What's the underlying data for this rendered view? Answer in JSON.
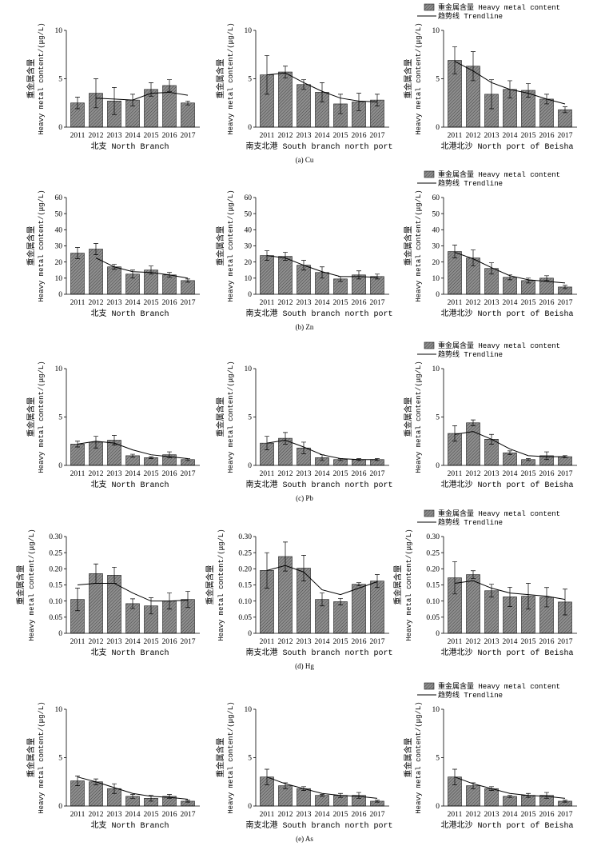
{
  "colors": {
    "bar_fill": "#8e8e8e",
    "bar_hatch": "#3f3f3f",
    "line": "#000000"
  },
  "captions": [
    "(a) Cu",
    "(b) Zn",
    "(c) Pb",
    "(d) Hg",
    "(e) As"
  ],
  "chart_data": [
    {
      "type": "bar",
      "categories": [
        "2011",
        "2012",
        "2013",
        "2014",
        "2015",
        "2016",
        "2017"
      ],
      "values": [
        2.5,
        3.5,
        2.7,
        2.8,
        3.9,
        4.3,
        2.5
      ],
      "error": [
        0.6,
        1.5,
        1.4,
        0.6,
        0.7,
        0.6,
        0.2
      ],
      "trend": [
        null,
        3.0,
        2.9,
        2.8,
        3.5,
        3.6,
        3.3
      ],
      "xlabel": "北支 North Branch",
      "ylabel": [
        "重金属含量",
        "Heavy metal content/(μg/L)"
      ],
      "ylim": [
        0,
        10
      ],
      "yticks": [
        "0",
        "5",
        "10"
      ]
    },
    {
      "type": "bar",
      "categories": [
        "2011",
        "2012",
        "2013",
        "2014",
        "2015",
        "2016",
        "2017"
      ],
      "values": [
        5.4,
        5.7,
        4.4,
        3.6,
        2.4,
        2.6,
        2.8
      ],
      "error": [
        2.0,
        0.6,
        0.5,
        1.0,
        1.0,
        0.9,
        0.6
      ],
      "trend": [
        5.4,
        5.6,
        4.6,
        3.7,
        3.0,
        2.7,
        2.6
      ],
      "xlabel": "南支北港 South branch north port",
      "ylabel": [
        "重金属含量",
        "Heavy metal content/(μg/L)"
      ],
      "ylim": [
        0,
        10
      ],
      "yticks": [
        "0",
        "5",
        "10"
      ]
    },
    {
      "type": "bar",
      "categories": [
        "2011",
        "2012",
        "2013",
        "2014",
        "2015",
        "2016",
        "2017"
      ],
      "values": [
        6.9,
        6.3,
        3.4,
        3.9,
        3.8,
        2.9,
        1.8
      ],
      "error": [
        1.4,
        1.5,
        1.5,
        0.9,
        0.7,
        0.5,
        0.3
      ],
      "trend": [
        6.8,
        5.8,
        4.6,
        3.9,
        3.5,
        2.9,
        2.4
      ],
      "xlabel": "北港北沙 North port of Beisha",
      "ylabel": [
        "重金属含量",
        "Heavy metal content/(μg/L)"
      ],
      "ylim": [
        0,
        10
      ],
      "yticks": [
        "0",
        "5",
        "10"
      ],
      "legend": [
        "重金属含量 Heavy metal content",
        "趋势线 Trendline"
      ]
    },
    {
      "type": "bar",
      "categories": [
        "2011",
        "2012",
        "2013",
        "2014",
        "2015",
        "2016",
        "2017"
      ],
      "values": [
        25.5,
        28,
        17,
        12.5,
        15,
        12,
        8.5
      ],
      "error": [
        3.5,
        3.5,
        1.5,
        2.5,
        2.5,
        1.5,
        1
      ],
      "trend": [
        null,
        22.5,
        17,
        14,
        13.5,
        12,
        10
      ],
      "xlabel": "北支 North Branch",
      "ylabel": [
        "重金属含量",
        "Heavy metal content/(μg/L)"
      ],
      "ylim": [
        0,
        60
      ],
      "yticks": [
        "0",
        "10",
        "20",
        "30",
        "40",
        "50",
        "60"
      ]
    },
    {
      "type": "bar",
      "categories": [
        "2011",
        "2012",
        "2013",
        "2014",
        "2015",
        "2016",
        "2017"
      ],
      "values": [
        24,
        23.5,
        18,
        13.5,
        9.5,
        12,
        11
      ],
      "error": [
        3,
        2.5,
        3,
        3.5,
        1.5,
        2.5,
        1.5
      ],
      "trend": [
        24,
        22.5,
        18,
        14,
        11,
        11,
        10.5
      ],
      "xlabel": "南支北港 South branch north port",
      "ylabel": [
        "重金属含量",
        "Heavy metal content/(μg/L)"
      ],
      "ylim": [
        0,
        60
      ],
      "yticks": [
        "0",
        "10",
        "20",
        "30",
        "40",
        "50",
        "60"
      ]
    },
    {
      "type": "bar",
      "categories": [
        "2011",
        "2012",
        "2013",
        "2014",
        "2015",
        "2016",
        "2017"
      ],
      "values": [
        26.5,
        22.5,
        16,
        10.5,
        8.5,
        10,
        4.5
      ],
      "error": [
        4,
        5,
        3.5,
        1.5,
        1.5,
        1.5,
        1
      ],
      "trend": [
        26,
        22,
        16.5,
        11.5,
        9,
        8,
        7
      ],
      "xlabel": "北港北沙 North port of Beisha",
      "ylabel": [
        "重金属含量",
        "Heavy metal content/(μg/L)"
      ],
      "ylim": [
        0,
        60
      ],
      "yticks": [
        "0",
        "10",
        "20",
        "30",
        "40",
        "50",
        "60"
      ],
      "legend": [
        "重金属含量 Heavy metal content",
        "趋势线 Trendline"
      ]
    },
    {
      "type": "bar",
      "categories": [
        "2011",
        "2012",
        "2013",
        "2014",
        "2015",
        "2016",
        "2017"
      ],
      "values": [
        2.2,
        2.4,
        2.6,
        1.0,
        0.8,
        1.1,
        0.6
      ],
      "error": [
        0.3,
        0.6,
        0.5,
        0.15,
        0.1,
        0.3,
        0.1
      ],
      "trend": [
        2.2,
        2.5,
        2.3,
        1.6,
        1.1,
        0.9,
        0.7
      ],
      "xlabel": "北支 North Branch",
      "ylabel": [
        "重金属含量",
        "Heavy metal content/(μg/L)"
      ],
      "ylim": [
        0,
        10
      ],
      "yticks": [
        "0",
        "5",
        "10"
      ]
    },
    {
      "type": "bar",
      "categories": [
        "2011",
        "2012",
        "2013",
        "2014",
        "2015",
        "2016",
        "2017"
      ],
      "values": [
        2.3,
        2.8,
        1.8,
        0.8,
        0.6,
        0.6,
        0.6
      ],
      "error": [
        0.7,
        0.6,
        0.6,
        0.3,
        0.1,
        0.1,
        0.1
      ],
      "trend": [
        2.3,
        2.6,
        1.9,
        1.1,
        0.7,
        0.6,
        0.6
      ],
      "xlabel": "南支北港 South branch north port",
      "ylabel": [
        "重金属含量",
        "Heavy metal content/(μg/L)"
      ],
      "ylim": [
        0,
        10
      ],
      "yticks": [
        "0",
        "5",
        "10"
      ]
    },
    {
      "type": "bar",
      "categories": [
        "2011",
        "2012",
        "2013",
        "2014",
        "2015",
        "2016",
        "2017"
      ],
      "values": [
        3.3,
        4.4,
        2.7,
        1.3,
        0.6,
        1.0,
        0.9
      ],
      "error": [
        0.8,
        0.3,
        0.5,
        0.2,
        0.1,
        0.4,
        0.1
      ],
      "trend": [
        3.2,
        3.5,
        2.7,
        1.7,
        1.0,
        0.9,
        0.9
      ],
      "xlabel": "北港北沙 North port of Beisha",
      "ylabel": [
        "重金属含量",
        "Heavy metal content/(μg/L)"
      ],
      "ylim": [
        0,
        10
      ],
      "yticks": [
        "0",
        "5",
        "10"
      ],
      "legend": [
        "重金属含量 Heavy metal content",
        "趋势线 Trendline"
      ]
    },
    {
      "type": "bar",
      "categories": [
        "2011",
        "2012",
        "2013",
        "2014",
        "2015",
        "2016",
        "2017"
      ],
      "values": [
        0.105,
        0.185,
        0.18,
        0.092,
        0.085,
        0.1,
        0.105
      ],
      "error": [
        0.035,
        0.03,
        0.025,
        0.015,
        0.025,
        0.025,
        0.025
      ],
      "trend": [
        0.15,
        0.155,
        0.155,
        0.125,
        0.1,
        0.1,
        0.103
      ],
      "xlabel": "北支 North Branch",
      "ylabel": [
        "重金属含量",
        "Heavy metal content/(μg/L)"
      ],
      "ylim": [
        0,
        0.3
      ],
      "yticks": [
        "0",
        "0.05",
        "0.10",
        "0.15",
        "0.20",
        "0.25",
        "0.30"
      ]
    },
    {
      "type": "bar",
      "categories": [
        "2011",
        "2012",
        "2013",
        "2014",
        "2015",
        "2016",
        "2017"
      ],
      "values": [
        0.195,
        0.238,
        0.202,
        0.105,
        0.098,
        0.152,
        0.162
      ],
      "error": [
        0.055,
        0.045,
        0.04,
        0.02,
        0.01,
        0.005,
        0.02
      ],
      "trend": [
        0.195,
        0.21,
        0.19,
        0.135,
        0.12,
        0.14,
        0.16
      ],
      "xlabel": "南支北港 South branch north port",
      "ylabel": [
        "重金属含量",
        "Heavy metal content/(μg/L)"
      ],
      "ylim": [
        0,
        0.3
      ],
      "yticks": [
        "0",
        "0.05",
        "0.10",
        "0.15",
        "0.20",
        "0.25",
        "0.30"
      ]
    },
    {
      "type": "bar",
      "categories": [
        "2011",
        "2012",
        "2013",
        "2014",
        "2015",
        "2016",
        "2017"
      ],
      "values": [
        0.172,
        0.182,
        0.132,
        0.113,
        0.115,
        0.112,
        0.097
      ],
      "error": [
        0.05,
        0.012,
        0.02,
        0.03,
        0.04,
        0.03,
        0.04
      ],
      "trend": [
        0.155,
        0.163,
        0.14,
        0.125,
        0.12,
        0.115,
        0.105
      ],
      "xlabel": "北港北沙 North port of Beisha",
      "ylabel": [
        "重金属含量",
        "Heavy metal content/(μg/L)"
      ],
      "ylim": [
        0,
        0.3
      ],
      "yticks": [
        "0",
        "0.05",
        "0.10",
        "0.15",
        "0.20",
        "0.25",
        "0.30"
      ],
      "legend": [
        "重金属含量 Heavy metal content",
        "趋势线 Trendline"
      ]
    },
    {
      "type": "bar",
      "categories": [
        "2011",
        "2012",
        "2013",
        "2014",
        "2015",
        "2016",
        "2017"
      ],
      "values": [
        2.6,
        2.5,
        1.8,
        1.0,
        0.8,
        1.0,
        0.5
      ],
      "error": [
        0.5,
        0.3,
        0.5,
        0.2,
        0.3,
        0.2,
        0.1
      ],
      "trend": [
        3.0,
        2.5,
        1.9,
        1.3,
        1.0,
        0.9,
        0.7
      ],
      "xlabel": "北支 North Branch",
      "ylabel": [
        "重金属含量",
        "Heavy metal content/(μg/L)"
      ],
      "ylim": [
        0,
        10
      ],
      "yticks": [
        "0",
        "5",
        "10"
      ]
    },
    {
      "type": "bar",
      "categories": [
        "2011",
        "2012",
        "2013",
        "2014",
        "2015",
        "2016",
        "2017"
      ],
      "values": [
        3.0,
        2.1,
        1.8,
        1.1,
        1.1,
        1.1,
        0.5
      ],
      "error": [
        0.8,
        0.3,
        0.2,
        0.1,
        0.2,
        0.3,
        0.1
      ],
      "trend": [
        3.0,
        2.3,
        1.8,
        1.3,
        1.1,
        1.0,
        0.8
      ],
      "xlabel": "南支北港 South branch north port",
      "ylabel": [
        "重金属含量",
        "Heavy metal content/(μg/L)"
      ],
      "ylim": [
        0,
        10
      ],
      "yticks": [
        "0",
        "5",
        "10"
      ]
    },
    {
      "type": "bar",
      "categories": [
        "2011",
        "2012",
        "2013",
        "2014",
        "2015",
        "2016",
        "2017"
      ],
      "values": [
        3.0,
        2.1,
        1.8,
        1.0,
        1.1,
        1.1,
        0.5
      ],
      "error": [
        0.8,
        0.3,
        0.2,
        0.1,
        0.2,
        0.3,
        0.1
      ],
      "trend": [
        3.0,
        2.3,
        1.8,
        1.3,
        1.1,
        1.0,
        0.8
      ],
      "xlabel": "北港北沙 North port of Beisha",
      "ylabel": [
        "重金属含量",
        "Heavy metal content/(μg/L)"
      ],
      "ylim": [
        0,
        10
      ],
      "yticks": [
        "0",
        "5",
        "10"
      ],
      "legend": [
        "重金属含量 Heavy metal content",
        "趋势线 Trendline"
      ]
    }
  ]
}
